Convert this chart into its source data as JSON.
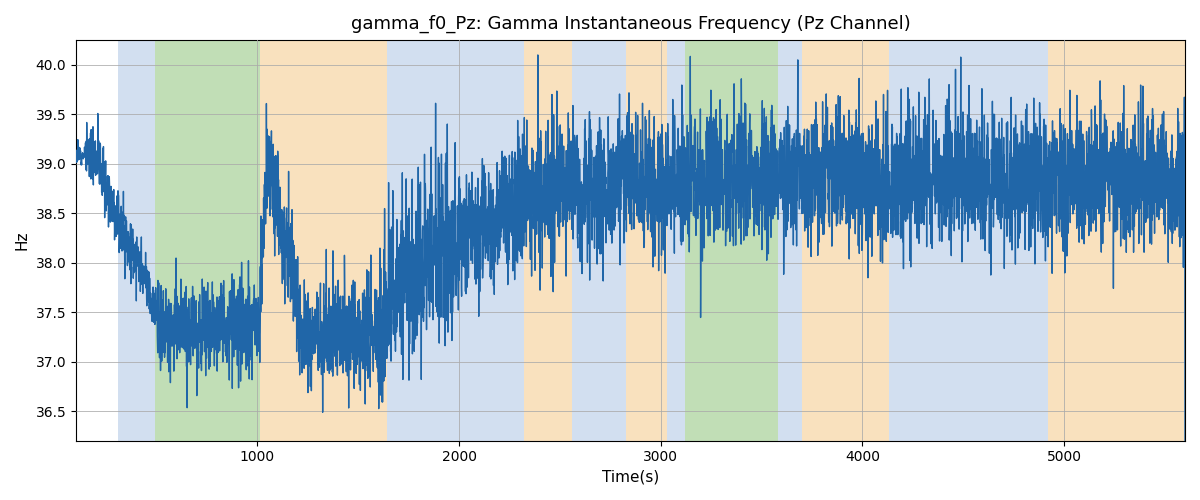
{
  "title": "gamma_f0_Pz: Gamma Instantaneous Frequency (Pz Channel)",
  "xlabel": "Time(s)",
  "ylabel": "Hz",
  "xlim": [
    100,
    5600
  ],
  "ylim": [
    36.2,
    40.25
  ],
  "yticks": [
    36.5,
    37.0,
    37.5,
    38.0,
    38.5,
    39.0,
    39.5,
    40.0
  ],
  "xticks": [
    1000,
    2000,
    3000,
    4000,
    5000
  ],
  "line_color": "#2066a8",
  "line_width": 1.0,
  "bg_color": "white",
  "grid_color": "#aaaaaa",
  "colored_bands": [
    {
      "xmin": 310,
      "xmax": 490,
      "color": "#adc6e4",
      "alpha": 0.55
    },
    {
      "xmin": 490,
      "xmax": 1010,
      "color": "#8ec47a",
      "alpha": 0.55
    },
    {
      "xmin": 1010,
      "xmax": 1640,
      "color": "#f5c98a",
      "alpha": 0.55
    },
    {
      "xmin": 1640,
      "xmax": 1760,
      "color": "#adc6e4",
      "alpha": 0.55
    },
    {
      "xmin": 1760,
      "xmax": 2060,
      "color": "#adc6e4",
      "alpha": 0.55
    },
    {
      "xmin": 2060,
      "xmax": 2320,
      "color": "#adc6e4",
      "alpha": 0.55
    },
    {
      "xmin": 2320,
      "xmax": 2560,
      "color": "#f5c98a",
      "alpha": 0.55
    },
    {
      "xmin": 2560,
      "xmax": 2650,
      "color": "#adc6e4",
      "alpha": 0.55
    },
    {
      "xmin": 2650,
      "xmax": 2830,
      "color": "#adc6e4",
      "alpha": 0.55
    },
    {
      "xmin": 2830,
      "xmax": 3030,
      "color": "#f5c98a",
      "alpha": 0.55
    },
    {
      "xmin": 3030,
      "xmax": 3120,
      "color": "#adc6e4",
      "alpha": 0.55
    },
    {
      "xmin": 3120,
      "xmax": 3580,
      "color": "#8ec47a",
      "alpha": 0.55
    },
    {
      "xmin": 3580,
      "xmax": 3700,
      "color": "#adc6e4",
      "alpha": 0.55
    },
    {
      "xmin": 3700,
      "xmax": 4130,
      "color": "#f5c98a",
      "alpha": 0.55
    },
    {
      "xmin": 4130,
      "xmax": 4920,
      "color": "#adc6e4",
      "alpha": 0.55
    },
    {
      "xmin": 4920,
      "xmax": 5600,
      "color": "#f5c98a",
      "alpha": 0.55
    }
  ],
  "seed": 12,
  "n_points": 5500,
  "title_fontsize": 13,
  "axis_fontsize": 11
}
